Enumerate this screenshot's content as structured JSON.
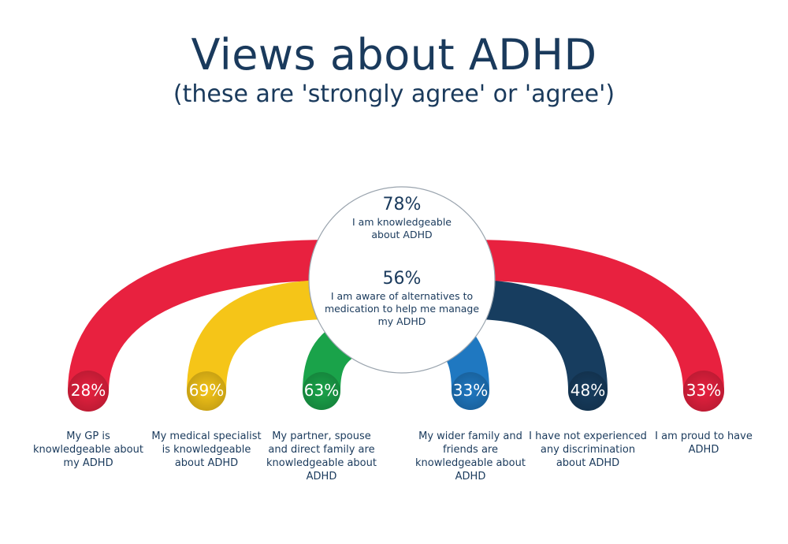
{
  "header": {
    "title": "Views about ADHD",
    "subtitle": "(these are 'strongly agree' or 'agree')"
  },
  "center": {
    "top": {
      "pct": "78%",
      "text": "I am knowledgeable about ADHD"
    },
    "bottom": {
      "pct": "56%",
      "text": "I am aware of alternatives to medication to help me manage my ADHD"
    }
  },
  "arcs": [
    {
      "pct": "28%",
      "value": 28,
      "caption": "My GP is knowledgeable about my ADHD",
      "color": "#e8213f"
    },
    {
      "pct": "69%",
      "value": 69,
      "caption": "My medical specialist is knowledgeable about ADHD",
      "color": "#f5c518"
    },
    {
      "pct": "63%",
      "value": 63,
      "caption": "My partner, spouse and direct family are knowledgeable about ADHD",
      "color": "#1aa34a"
    },
    {
      "pct": "33%",
      "value": 33,
      "caption": "My wider family and friends are knowledgeable about ADHD",
      "color": "#1f78c1"
    },
    {
      "pct": "48%",
      "value": 48,
      "caption": "I have not experienced any discrimination about ADHD",
      "color": "#173d5f"
    },
    {
      "pct": "33%",
      "value": 33,
      "caption": "I am proud to have ADHD",
      "color": "#e8213f"
    }
  ]
}
